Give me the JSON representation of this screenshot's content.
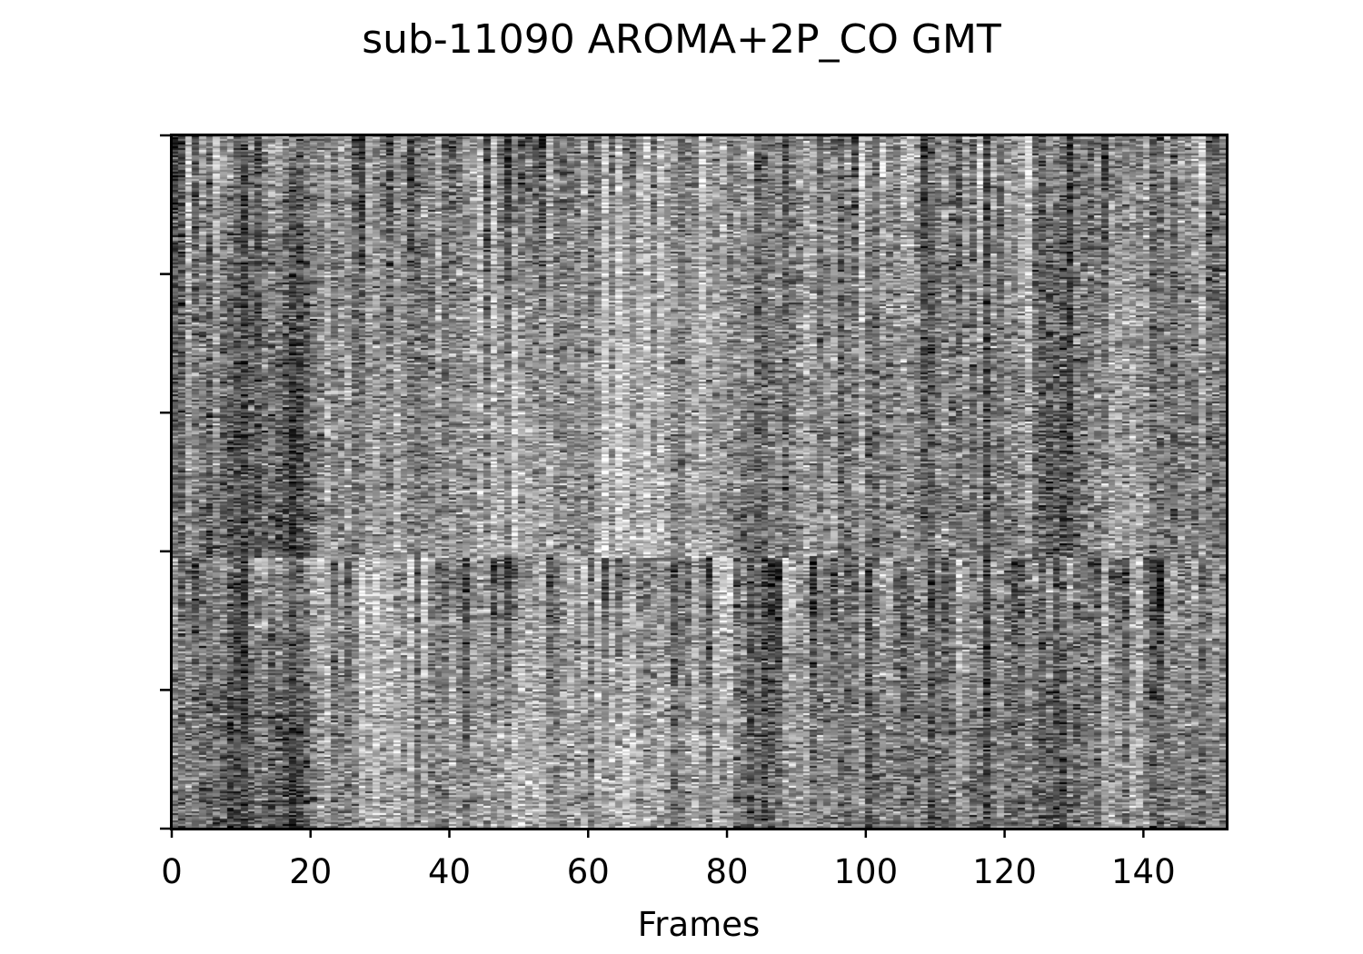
{
  "chart_data": {
    "type": "heatmap",
    "title": "sub-11090 AROMA+2P_CO GMT",
    "xlabel": "Frames",
    "ylabel": "",
    "xlim": [
      0,
      152
    ],
    "x_ticks": [
      0,
      20,
      40,
      60,
      80,
      100,
      120,
      140
    ],
    "x_tick_labels": [
      "0",
      "20",
      "40",
      "60",
      "80",
      "100",
      "120",
      "140"
    ],
    "y_tick_count": 6,
    "y_tick_labels": [],
    "colormap": "gray",
    "n_frames": 152,
    "n_rows": 380,
    "sections": [
      {
        "name": "",
        "rows_fraction": [
          0.0,
          0.61
        ]
      },
      {
        "name": "",
        "rows_fraction": [
          0.61,
          1.0
        ]
      }
    ],
    "grid": false,
    "colors": {
      "background": "#ffffff",
      "axis": "#000000"
    }
  }
}
